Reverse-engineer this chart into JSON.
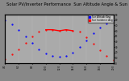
{
  "title": "Solar PV/Inverter Performance  Sun Altitude Angle & Sun Incidence Angle on PV Panels",
  "title_fontsize": 3.8,
  "legend_labels": [
    "Sun Altitude Ang",
    "Sun Incidence Ang"
  ],
  "legend_colors": [
    "#0000ff",
    "#ff0000"
  ],
  "bg_color": "#888888",
  "plot_bg_color": "#aaaaaa",
  "grid_color": "#bbbbbb",
  "ylim": [
    0,
    90
  ],
  "xlim": [
    4,
    20
  ],
  "x_ticks": [
    4,
    6,
    8,
    10,
    12,
    14,
    16,
    18,
    20
  ],
  "x_tick_labels": [
    "4:0",
    "6:0",
    "8:0",
    "10:0",
    "12:0",
    "14:0",
    "16:0",
    "18:0",
    "20:0"
  ],
  "y_ticks_right": [
    0,
    10,
    20,
    30,
    40,
    50,
    60,
    70,
    80,
    90
  ],
  "sun_altitude_x": [
    4,
    5,
    6,
    7,
    8,
    9,
    10,
    11,
    12,
    13,
    14,
    15,
    16,
    17,
    18,
    19,
    20
  ],
  "sun_altitude_y": [
    80,
    72,
    62,
    50,
    38,
    26,
    18,
    13,
    12,
    14,
    20,
    30,
    42,
    55,
    66,
    74,
    80
  ],
  "sun_incidence_x": [
    4,
    5,
    6,
    7,
    8,
    9,
    10,
    11,
    12,
    13,
    14,
    15,
    16,
    17,
    18,
    19,
    20
  ],
  "sun_incidence_y": [
    8,
    16,
    26,
    38,
    50,
    58,
    62,
    62,
    60,
    62,
    60,
    58,
    48,
    36,
    24,
    14,
    6
  ],
  "incidence_line_x": [
    10,
    11,
    12,
    13,
    14
  ],
  "incidence_line_y": [
    62,
    62,
    60,
    62,
    60
  ]
}
